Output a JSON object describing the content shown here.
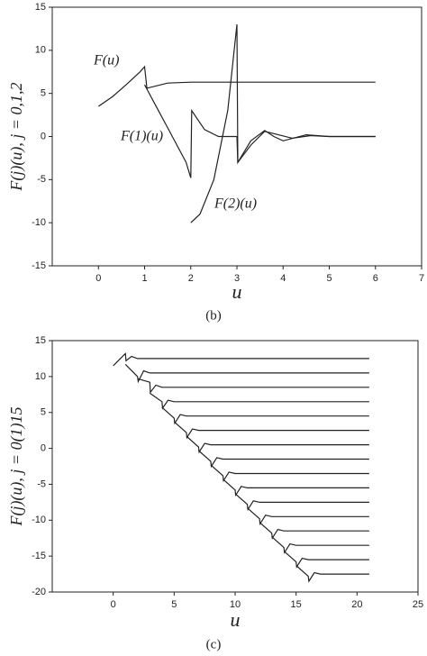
{
  "chart_data": [
    {
      "type": "line",
      "caption": "(b)",
      "xlabel": "u",
      "ylabel": "F(j)(u), j = 0,1,2",
      "xlim": [
        -1,
        7
      ],
      "xticks": [
        0,
        1,
        2,
        3,
        4,
        5,
        6,
        7
      ],
      "ylim": [
        -15,
        15
      ],
      "yticks": [
        -15,
        -10,
        -5,
        0,
        5,
        10,
        15
      ],
      "annotations": [
        "F(u)",
        "F(1)(u)",
        "F(2)(u)"
      ],
      "series": [
        {
          "name": "F(u)",
          "color": "#222",
          "x": [
            0,
            0.3,
            0.6,
            0.9,
            1,
            1.05,
            1.5,
            2,
            3,
            6
          ],
          "values": [
            3.5,
            4.6,
            6,
            7.5,
            8.1,
            5.6,
            6.2,
            6.3,
            6.3,
            6.3
          ]
        },
        {
          "name": "F(1)(u)",
          "color": "#222",
          "x": [
            1,
            1.3,
            1.6,
            1.9,
            2,
            2.02,
            2.3,
            2.6,
            3,
            3.02,
            3.3,
            3.6,
            3.9,
            4.2,
            4.6,
            5,
            6
          ],
          "values": [
            6,
            3,
            0,
            -3,
            -4.8,
            3,
            0.8,
            0,
            0,
            -3,
            -1,
            0.6,
            0.2,
            -0.2,
            0.1,
            0,
            0
          ]
        },
        {
          "name": "F(2)(u)",
          "color": "#222",
          "x": [
            2,
            2.2,
            2.5,
            2.8,
            3,
            3.02,
            3.3,
            3.6,
            3.8,
            4,
            4.5,
            5,
            6
          ],
          "values": [
            -10,
            -9,
            -5,
            3,
            13,
            -3,
            -0.5,
            0.7,
            0,
            -0.5,
            0.2,
            0,
            0
          ]
        }
      ]
    },
    {
      "type": "line",
      "caption": "(c)",
      "xlabel": "u",
      "ylabel": "F(j)(u), j = 0(1)15",
      "xlim": [
        -5,
        25
      ],
      "xticks": [
        0,
        5,
        10,
        15,
        20,
        25
      ],
      "ylim": [
        -20,
        15
      ],
      "yticks": [
        -20,
        -15,
        -10,
        -5,
        0,
        5,
        10,
        15
      ],
      "series": [
        {
          "color": "#222",
          "x": [
            0,
            1,
            1.05,
            1.5,
            2,
            21
          ],
          "values": [
            11.5,
            13.2,
            12.2,
            12.8,
            12.5,
            12.5
          ]
        },
        {
          "color": "#222",
          "x": [
            1,
            2,
            2.05,
            2.5,
            3,
            21
          ],
          "values": [
            11.7,
            10,
            9.3,
            10.8,
            10.5,
            10.5
          ]
        },
        {
          "color": "#222",
          "x": [
            2,
            3,
            3.05,
            3.5,
            4,
            21
          ],
          "values": [
            9.7,
            9.2,
            7.8,
            8.8,
            8.5,
            8.5
          ]
        },
        {
          "color": "#222",
          "x": [
            3,
            4,
            4.05,
            4.5,
            5,
            21
          ],
          "values": [
            7.7,
            6.5,
            5.6,
            6.7,
            6.5,
            6.5
          ]
        },
        {
          "color": "#222",
          "x": [
            4,
            5,
            5.05,
            5.5,
            6,
            21
          ],
          "values": [
            5.7,
            4.2,
            3.5,
            4.7,
            4.5,
            4.5
          ]
        },
        {
          "color": "#222",
          "x": [
            5,
            6,
            6.05,
            6.5,
            7,
            21
          ],
          "values": [
            3.7,
            2.2,
            1.5,
            2.7,
            2.5,
            2.5
          ]
        },
        {
          "color": "#222",
          "x": [
            6,
            7,
            7.05,
            7.5,
            8,
            21
          ],
          "values": [
            1.7,
            0.2,
            -0.5,
            0.7,
            0.5,
            0.5
          ]
        },
        {
          "color": "#222",
          "x": [
            7,
            8,
            8.05,
            8.5,
            9,
            21
          ],
          "values": [
            -0.3,
            -1.8,
            -2.5,
            -1.3,
            -1.5,
            -1.5
          ]
        },
        {
          "color": "#222",
          "x": [
            8,
            9,
            9.05,
            9.5,
            10,
            21
          ],
          "values": [
            -2.3,
            -3.8,
            -4.5,
            -3.3,
            -3.5,
            -3.5
          ]
        },
        {
          "color": "#222",
          "x": [
            9,
            10,
            10.05,
            10.5,
            11,
            21
          ],
          "values": [
            -4.3,
            -5.8,
            -6.5,
            -5.3,
            -5.5,
            -5.5
          ]
        },
        {
          "color": "#222",
          "x": [
            10,
            11,
            11.05,
            11.5,
            12,
            21
          ],
          "values": [
            -6.3,
            -7.8,
            -8.5,
            -7.3,
            -7.5,
            -7.5
          ]
        },
        {
          "color": "#222",
          "x": [
            11,
            12,
            12.05,
            12.5,
            13,
            21
          ],
          "values": [
            -8.3,
            -9.8,
            -10.5,
            -9.3,
            -9.5,
            -9.5
          ]
        },
        {
          "color": "#222",
          "x": [
            12,
            13,
            13.05,
            13.5,
            14,
            21
          ],
          "values": [
            -10.3,
            -11.8,
            -12.5,
            -11.3,
            -11.5,
            -11.5
          ]
        },
        {
          "color": "#222",
          "x": [
            13,
            14,
            14.05,
            14.5,
            15,
            21
          ],
          "values": [
            -12.3,
            -13.8,
            -14.5,
            -13.3,
            -13.5,
            -13.5
          ]
        },
        {
          "color": "#222",
          "x": [
            14,
            15,
            15.05,
            15.5,
            16,
            21
          ],
          "values": [
            -14.3,
            -15.8,
            -16.5,
            -15.3,
            -15.5,
            -15.5
          ]
        },
        {
          "color": "#222",
          "x": [
            15,
            16,
            16.05,
            16.5,
            17,
            21
          ],
          "values": [
            -16.3,
            -17.8,
            -18.5,
            -17.3,
            -17.5,
            -17.5
          ]
        }
      ]
    }
  ]
}
